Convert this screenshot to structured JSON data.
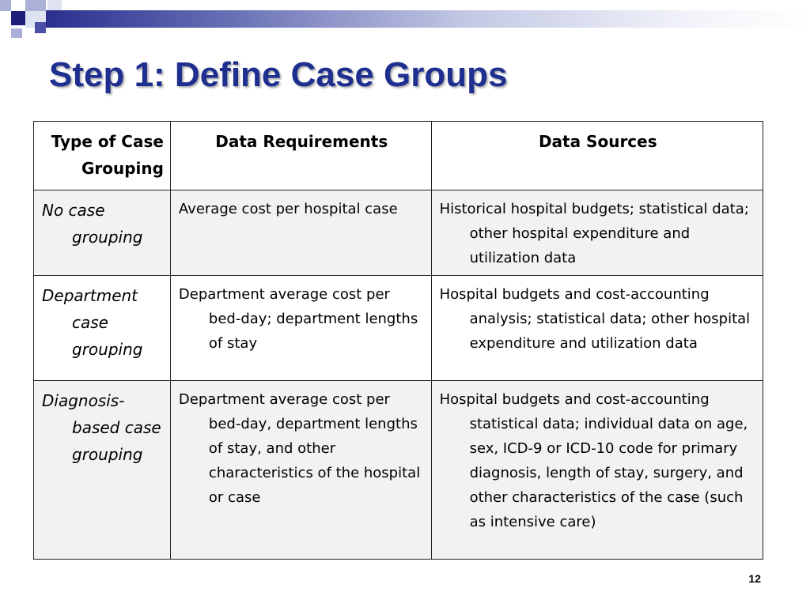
{
  "slide": {
    "title": "Step 1: Define Case Groups",
    "page_number": "12"
  },
  "table": {
    "headers": [
      "Type of Case Grouping",
      "Data Requirements",
      "Data Sources"
    ],
    "rows": [
      {
        "type": "No case grouping",
        "requirements": "Average cost per hospital case",
        "sources": "Historical hospital budgets; statistical data; other hospital expenditure and utilization data"
      },
      {
        "type": "Department case grouping",
        "requirements": "Department average cost per bed-day; department lengths of stay",
        "sources": "Hospital budgets and cost-accounting analysis; statistical data; other hospital expenditure and utilization data"
      },
      {
        "type": "Diagnosis-based case grouping",
        "requirements": "Department average cost per bed-day, department lengths of stay, and other characteristics of the hospital or case",
        "sources": "Hospital budgets and cost-accounting statistical data; individual data on age, sex, ICD-9 or ICD-10 code for primary diagnosis, length of stay, surgery, and other characteristics of the case (such as intensive care)"
      }
    ]
  },
  "colors": {
    "title": "#1e2f8f",
    "accent_navy": "#1d1f7a",
    "row_shade": "#f2f2f2"
  }
}
